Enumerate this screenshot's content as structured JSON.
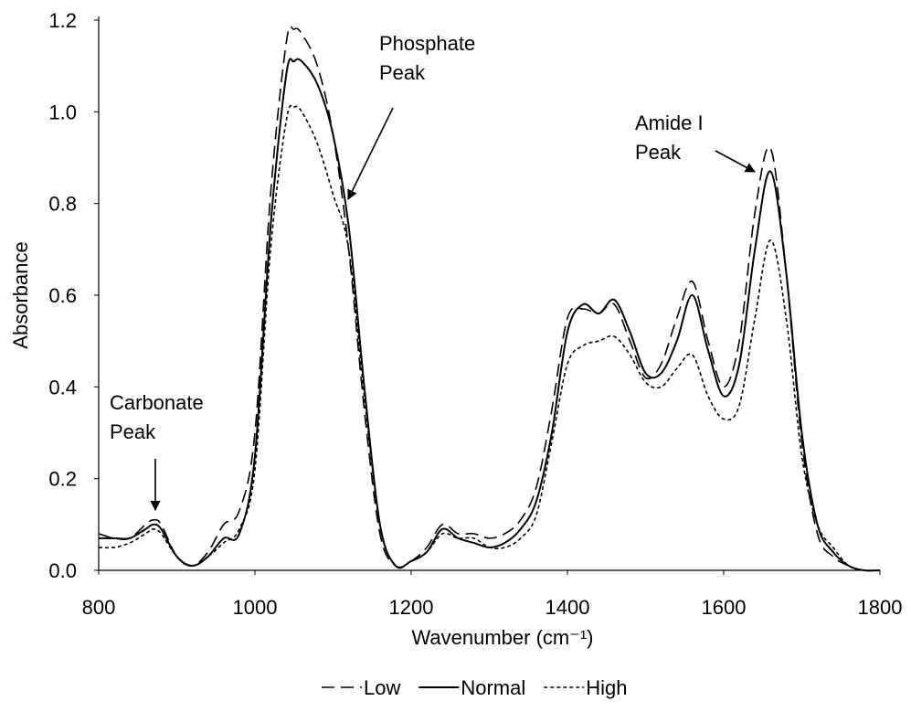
{
  "chart_data": {
    "type": "line",
    "x_label": "Wavenumber (cm⁻¹)",
    "y_label": "Absorbance",
    "x": [
      800,
      820,
      840,
      860,
      870,
      880,
      900,
      920,
      940,
      960,
      980,
      1000,
      1020,
      1040,
      1050,
      1060,
      1080,
      1100,
      1120,
      1140,
      1160,
      1180,
      1200,
      1220,
      1240,
      1260,
      1280,
      1300,
      1320,
      1340,
      1360,
      1380,
      1400,
      1420,
      1440,
      1460,
      1480,
      1500,
      1520,
      1540,
      1560,
      1580,
      1600,
      1620,
      1640,
      1660,
      1680,
      1700,
      1720,
      1740,
      1760,
      1780,
      1800
    ],
    "series": [
      {
        "name": "Low",
        "color": "#000000",
        "dash": "dashed",
        "values": [
          0.08,
          0.07,
          0.07,
          0.1,
          0.11,
          0.1,
          0.03,
          0.01,
          0.04,
          0.1,
          0.13,
          0.3,
          0.82,
          1.15,
          1.18,
          1.17,
          1.1,
          0.95,
          0.7,
          0.35,
          0.08,
          0.01,
          0.02,
          0.05,
          0.1,
          0.08,
          0.08,
          0.07,
          0.08,
          0.11,
          0.18,
          0.35,
          0.55,
          0.57,
          0.56,
          0.58,
          0.5,
          0.42,
          0.45,
          0.55,
          0.63,
          0.5,
          0.4,
          0.5,
          0.78,
          0.92,
          0.65,
          0.28,
          0.08,
          0.03,
          0.01,
          0,
          0
        ]
      },
      {
        "name": "Normal",
        "color": "#000000",
        "dash": "solid",
        "values": [
          0.07,
          0.07,
          0.07,
          0.09,
          0.1,
          0.09,
          0.03,
          0.01,
          0.03,
          0.07,
          0.08,
          0.25,
          0.75,
          1.08,
          1.11,
          1.11,
          1.06,
          0.95,
          0.75,
          0.4,
          0.1,
          0.01,
          0.02,
          0.04,
          0.09,
          0.07,
          0.06,
          0.05,
          0.06,
          0.09,
          0.15,
          0.3,
          0.52,
          0.58,
          0.56,
          0.59,
          0.52,
          0.43,
          0.43,
          0.5,
          0.6,
          0.48,
          0.38,
          0.45,
          0.7,
          0.87,
          0.65,
          0.3,
          0.1,
          0.04,
          0.01,
          0,
          0
        ]
      },
      {
        "name": "High",
        "color": "#000000",
        "dash": "dotted",
        "values": [
          0.05,
          0.05,
          0.06,
          0.08,
          0.09,
          0.08,
          0.03,
          0.01,
          0.03,
          0.06,
          0.09,
          0.22,
          0.7,
          0.98,
          1.01,
          1.0,
          0.93,
          0.82,
          0.7,
          0.38,
          0.1,
          0.01,
          0.02,
          0.04,
          0.08,
          0.07,
          0.07,
          0.05,
          0.05,
          0.07,
          0.12,
          0.28,
          0.45,
          0.49,
          0.5,
          0.51,
          0.47,
          0.41,
          0.4,
          0.44,
          0.47,
          0.38,
          0.33,
          0.36,
          0.55,
          0.72,
          0.55,
          0.25,
          0.1,
          0.05,
          0.01,
          0,
          0
        ]
      }
    ],
    "xlim": [
      800,
      1800
    ],
    "xticks": [
      800,
      1000,
      1200,
      1400,
      1600,
      1800
    ],
    "ylim": [
      0,
      1.2
    ],
    "yticks": [
      {
        "value": 0,
        "label": "0.0"
      },
      {
        "value": 0.2,
        "label": "0.2"
      },
      {
        "value": 0.4,
        "label": "0.4"
      },
      {
        "value": 0.6,
        "label": "0.6"
      },
      {
        "value": 0.8,
        "label": "0.8"
      },
      {
        "value": 1.0,
        "label": "1.0"
      },
      {
        "value": 1.2,
        "label": "1.2"
      }
    ],
    "grid": false,
    "legend": "bottom",
    "annotations": [
      {
        "lines": [
          "Carbonate",
          "Peak"
        ]
      },
      {
        "lines": [
          "Phosphate",
          "Peak"
        ]
      },
      {
        "lines": [
          "Amide I",
          "Peak"
        ]
      }
    ]
  }
}
